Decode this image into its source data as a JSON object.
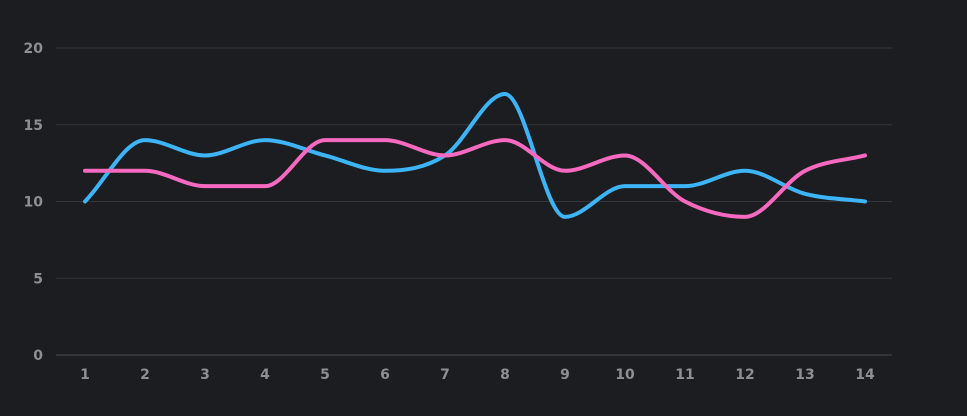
{
  "chart_data": {
    "type": "line",
    "smooth": true,
    "x": [
      1,
      2,
      3,
      4,
      5,
      6,
      7,
      8,
      9,
      10,
      11,
      12,
      13,
      14
    ],
    "series": [
      {
        "color": "#3db4f5",
        "values": [
          10,
          14,
          13,
          14,
          13,
          12,
          13,
          17,
          9,
          11,
          11,
          12,
          10.5,
          10
        ]
      },
      {
        "color": "#f569c0",
        "values": [
          12,
          12,
          11,
          11,
          14,
          14,
          13,
          14,
          12,
          13,
          10,
          9,
          12,
          13
        ]
      }
    ],
    "ylim": [
      0,
      20
    ],
    "yticks": [
      0,
      5,
      10,
      15,
      20
    ],
    "grid": "horizontal",
    "legend": "none"
  }
}
